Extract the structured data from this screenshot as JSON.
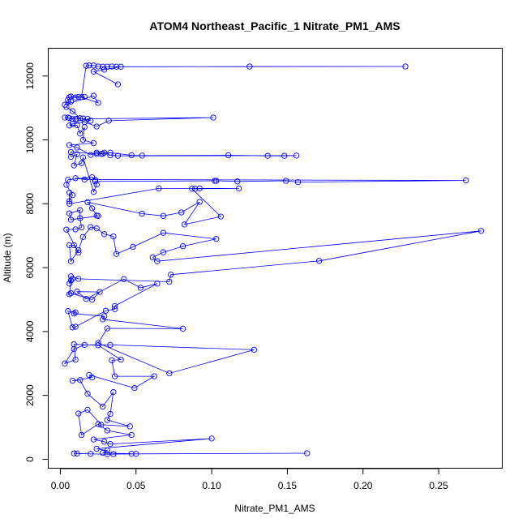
{
  "chart_data": {
    "type": "scatter",
    "title": "ATOM4 Northeast_Pacific_1 Nitrate_PM1_AMS",
    "xlabel": "Nitrate_PM1_AMS",
    "ylabel": "Altitude (m)",
    "xlim": [
      -0.008,
      0.292
    ],
    "ylim": [
      -280,
      12870
    ],
    "x_ticks": [
      0.0,
      0.05,
      0.1,
      0.15,
      0.2,
      0.25
    ],
    "x_tick_labels": [
      "0.00",
      "0.05",
      "0.10",
      "0.15",
      "0.20",
      "0.25"
    ],
    "y_ticks": [
      0,
      2000,
      4000,
      6000,
      8000,
      10000,
      12000
    ],
    "y_tick_labels": [
      "0",
      "2000",
      "4000",
      "6000",
      "8000",
      "10000",
      "12000"
    ],
    "grid": false,
    "series_color": "#0000ff",
    "points": [
      [
        0.011,
        180
      ],
      [
        0.009,
        185
      ],
      [
        0.02,
        170
      ],
      [
        0.031,
        160
      ],
      [
        0.05,
        170
      ],
      [
        0.163,
        190
      ],
      [
        0.035,
        165
      ],
      [
        0.047,
        175
      ],
      [
        0.028,
        200
      ],
      [
        0.031,
        270
      ],
      [
        0.024,
        330
      ],
      [
        0.1,
        650
      ],
      [
        0.033,
        480
      ],
      [
        0.029,
        550
      ],
      [
        0.022,
        620
      ],
      [
        0.047,
        760
      ],
      [
        0.031,
        900
      ],
      [
        0.025,
        1100
      ],
      [
        0.014,
        760
      ],
      [
        0.012,
        1430
      ],
      [
        0.018,
        1550
      ],
      [
        0.027,
        1080
      ],
      [
        0.046,
        1030
      ],
      [
        0.031,
        1230
      ],
      [
        0.033,
        1420
      ],
      [
        0.035,
        2100
      ],
      [
        0.028,
        1650
      ],
      [
        0.018,
        2050
      ],
      [
        0.013,
        2480
      ],
      [
        0.008,
        2460
      ],
      [
        0.021,
        2560
      ],
      [
        0.019,
        2640
      ],
      [
        0.049,
        2230
      ],
      [
        0.062,
        2600
      ],
      [
        0.036,
        2600
      ],
      [
        0.034,
        3100
      ],
      [
        0.04,
        3120
      ],
      [
        0.025,
        3570
      ],
      [
        0.009,
        3600
      ],
      [
        0.01,
        3120
      ],
      [
        0.003,
        3000
      ],
      [
        0.009,
        3450
      ],
      [
        0.016,
        3580
      ],
      [
        0.033,
        3580
      ],
      [
        0.128,
        3430
      ],
      [
        0.072,
        2690
      ],
      [
        0.025,
        3640
      ],
      [
        0.031,
        4100
      ],
      [
        0.081,
        4090
      ],
      [
        0.028,
        4380
      ],
      [
        0.029,
        4480
      ],
      [
        0.009,
        4560
      ],
      [
        0.01,
        4600
      ],
      [
        0.005,
        4640
      ],
      [
        0.008,
        4130
      ],
      [
        0.01,
        4150
      ],
      [
        0.03,
        4650
      ],
      [
        0.036,
        4700
      ],
      [
        0.036,
        4800
      ],
      [
        0.064,
        5500
      ],
      [
        0.053,
        5370
      ],
      [
        0.042,
        5640
      ],
      [
        0.017,
        5020
      ],
      [
        0.011,
        5250
      ],
      [
        0.026,
        5240
      ],
      [
        0.021,
        5000
      ],
      [
        0.007,
        5200
      ],
      [
        0.006,
        5170
      ],
      [
        0.007,
        5600
      ],
      [
        0.008,
        5650
      ],
      [
        0.006,
        5500
      ],
      [
        0.007,
        5730
      ],
      [
        0.012,
        5650
      ],
      [
        0.072,
        5560
      ],
      [
        0.073,
        5780
      ],
      [
        0.171,
        6210
      ],
      [
        0.278,
        7150
      ],
      [
        0.064,
        6200
      ],
      [
        0.061,
        6320
      ],
      [
        0.068,
        6480
      ],
      [
        0.081,
        6670
      ],
      [
        0.103,
        6900
      ],
      [
        0.068,
        7090
      ],
      [
        0.048,
        6650
      ],
      [
        0.037,
        6430
      ],
      [
        0.035,
        6980
      ],
      [
        0.029,
        7050
      ],
      [
        0.024,
        7230
      ],
      [
        0.02,
        7270
      ],
      [
        0.015,
        6960
      ],
      [
        0.012,
        6550
      ],
      [
        0.007,
        6200
      ],
      [
        0.006,
        6700
      ],
      [
        0.009,
        6700
      ],
      [
        0.012,
        6470
      ],
      [
        0.004,
        7190
      ],
      [
        0.01,
        7200
      ],
      [
        0.014,
        7260
      ],
      [
        0.013,
        7550
      ],
      [
        0.013,
        7800
      ],
      [
        0.006,
        7700
      ],
      [
        0.007,
        7500
      ],
      [
        0.025,
        7620
      ],
      [
        0.024,
        7630
      ],
      [
        0.021,
        7860
      ],
      [
        0.018,
        8050
      ],
      [
        0.054,
        7690
      ],
      [
        0.068,
        7620
      ],
      [
        0.08,
        7730
      ],
      [
        0.092,
        8060
      ],
      [
        0.082,
        7350
      ],
      [
        0.106,
        7600
      ],
      [
        0.087,
        8470
      ],
      [
        0.092,
        8480
      ],
      [
        0.089,
        8470
      ],
      [
        0.118,
        8480
      ],
      [
        0.065,
        8480
      ],
      [
        0.006,
        8000
      ],
      [
        0.006,
        8350
      ],
      [
        0.006,
        8080
      ],
      [
        0.008,
        8270
      ],
      [
        0.004,
        8590
      ],
      [
        0.005,
        8750
      ],
      [
        0.021,
        8830
      ],
      [
        0.023,
        8750
      ],
      [
        0.01,
        8800
      ],
      [
        0.016,
        8760
      ],
      [
        0.268,
        8730
      ],
      [
        0.157,
        8680
      ],
      [
        0.149,
        8720
      ],
      [
        0.117,
        8700
      ],
      [
        0.103,
        8720
      ],
      [
        0.102,
        8720
      ],
      [
        0.023,
        8700
      ],
      [
        0.024,
        8600
      ],
      [
        0.022,
        8370
      ],
      [
        0.015,
        9450
      ],
      [
        0.014,
        9270
      ],
      [
        0.009,
        9200
      ],
      [
        0.011,
        9550
      ],
      [
        0.007,
        9470
      ],
      [
        0.007,
        9620
      ],
      [
        0.024,
        9560
      ],
      [
        0.028,
        9570
      ],
      [
        0.033,
        9600
      ],
      [
        0.047,
        9520
      ],
      [
        0.054,
        9510
      ],
      [
        0.111,
        9520
      ],
      [
        0.137,
        9500
      ],
      [
        0.148,
        9500
      ],
      [
        0.156,
        9510
      ],
      [
        0.038,
        9500
      ],
      [
        0.033,
        9520
      ],
      [
        0.029,
        9600
      ],
      [
        0.027,
        9560
      ],
      [
        0.024,
        9600
      ],
      [
        0.02,
        9530
      ],
      [
        0.011,
        9760
      ],
      [
        0.006,
        9840
      ],
      [
        0.022,
        9900
      ],
      [
        0.015,
        10000
      ],
      [
        0.016,
        10400
      ],
      [
        0.013,
        10200
      ],
      [
        0.011,
        10460
      ],
      [
        0.006,
        10450
      ],
      [
        0.008,
        10500
      ],
      [
        0.016,
        10560
      ],
      [
        0.024,
        10420
      ],
      [
        0.032,
        10600
      ],
      [
        0.101,
        10700
      ],
      [
        0.018,
        10660
      ],
      [
        0.02,
        10600
      ],
      [
        0.015,
        10670
      ],
      [
        0.01,
        10650
      ],
      [
        0.006,
        10680
      ],
      [
        0.005,
        10700
      ],
      [
        0.003,
        10700
      ],
      [
        0.008,
        10650
      ],
      [
        0.011,
        10660
      ],
      [
        0.013,
        10680
      ],
      [
        0.008,
        10900
      ],
      [
        0.004,
        11030
      ],
      [
        0.007,
        11200
      ],
      [
        0.006,
        11340
      ],
      [
        0.01,
        11330
      ],
      [
        0.016,
        11350
      ],
      [
        0.012,
        11350
      ],
      [
        0.007,
        11360
      ],
      [
        0.005,
        11250
      ],
      [
        0.003,
        11100
      ],
      [
        0.022,
        11380
      ],
      [
        0.025,
        11160
      ],
      [
        0.014,
        11340
      ],
      [
        0.017,
        12320
      ],
      [
        0.019,
        12330
      ],
      [
        0.022,
        12330
      ],
      [
        0.025,
        12300
      ],
      [
        0.028,
        12290
      ],
      [
        0.031,
        12290
      ],
      [
        0.034,
        12300
      ],
      [
        0.037,
        12290
      ],
      [
        0.125,
        12300
      ],
      [
        0.228,
        12300
      ],
      [
        0.04,
        12290
      ],
      [
        0.029,
        12200
      ],
      [
        0.022,
        12140
      ],
      [
        0.038,
        11740
      ]
    ]
  }
}
